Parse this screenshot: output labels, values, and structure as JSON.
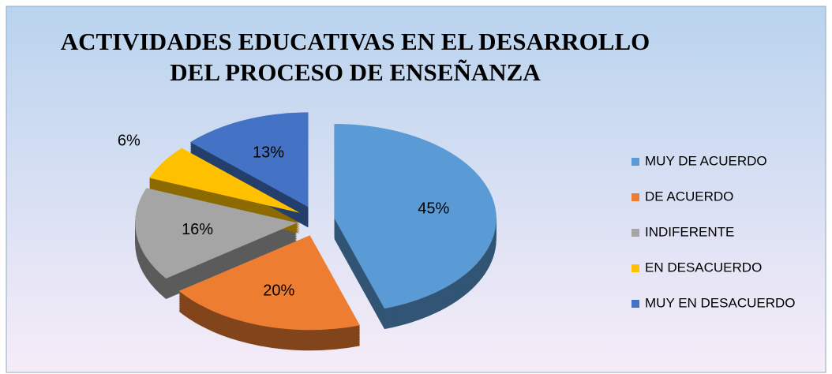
{
  "chart_data": {
    "type": "pie",
    "title": [
      "ACTIVIDADES EDUCATIVAS EN EL DESARROLLO",
      "DEL PROCESO DE ENSEÑANZA"
    ],
    "categories": [
      "MUY DE ACUERDO",
      "DE ACUERDO",
      "INDIFERENTE",
      "EN DESACUERDO",
      "MUY EN DESACUERDO"
    ],
    "values": [
      45,
      20,
      16,
      6,
      13
    ],
    "value_labels": [
      "45%",
      "20%",
      "16%",
      "6%",
      "13%"
    ],
    "colors": [
      "#5b9bd5",
      "#ed7d31",
      "#a5a5a5",
      "#ffc000",
      "#4472c4"
    ],
    "legend": "right"
  }
}
